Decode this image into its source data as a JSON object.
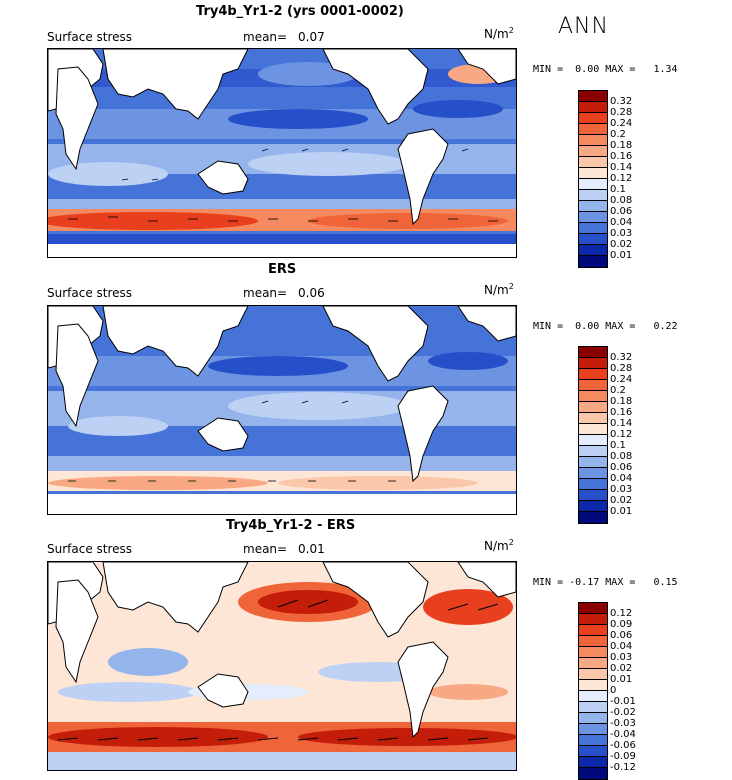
{
  "season": "ANN",
  "unit": "N/m",
  "unit_sup": "2",
  "panels": [
    {
      "title": "Try4b_Yr1-2 (yrs 0001-0002)",
      "field": "Surface stress",
      "mean_label": "mean=",
      "mean": "0.07",
      "minmax": {
        "min_label": "MIN =",
        "min": "0.00",
        "max_label": "MAX =",
        "max": "1.34"
      },
      "colorbar": {
        "labels": [
          "0.32",
          "0.28",
          "0.24",
          "0.2",
          "0.18",
          "0.16",
          "0.14",
          "0.12",
          "0.1",
          "0.08",
          "0.06",
          "0.04",
          "0.03",
          "0.02",
          "0.01"
        ],
        "colors": [
          "#8b0000",
          "#c41e0a",
          "#e8401f",
          "#f0643a",
          "#f5895f",
          "#f8a983",
          "#fac7ab",
          "#fde6d6",
          "#e3edfb",
          "#bcd1f4",
          "#95b4ec",
          "#6c94e2",
          "#4673d8",
          "#2650c9",
          "#0b28a8",
          "#000a7a"
        ]
      }
    },
    {
      "title": "ERS",
      "field": "Surface stress",
      "mean_label": "mean=",
      "mean": "0.06",
      "minmax": {
        "min_label": "MIN =",
        "min": "0.00",
        "max_label": "MAX =",
        "max": "0.22"
      },
      "colorbar": {
        "labels": [
          "0.32",
          "0.28",
          "0.24",
          "0.2",
          "0.18",
          "0.16",
          "0.14",
          "0.12",
          "0.1",
          "0.08",
          "0.06",
          "0.04",
          "0.03",
          "0.02",
          "0.01"
        ],
        "colors": [
          "#8b0000",
          "#c41e0a",
          "#e8401f",
          "#f0643a",
          "#f5895f",
          "#f8a983",
          "#fac7ab",
          "#fde6d6",
          "#e3edfb",
          "#bcd1f4",
          "#95b4ec",
          "#6c94e2",
          "#4673d8",
          "#2650c9",
          "#0b28a8",
          "#000a7a"
        ]
      }
    },
    {
      "title": "Try4b_Yr1-2 - ERS",
      "field": "Surface stress",
      "mean_label": "mean=",
      "mean": "0.01",
      "minmax": {
        "min_label": "MIN =",
        "min": "-0.17",
        "max_label": "MAX =",
        "max": "0.15"
      },
      "colorbar": {
        "labels": [
          "0.12",
          "0.09",
          "0.06",
          "0.04",
          "0.03",
          "0.02",
          "0.01",
          "0",
          "-0.01",
          "-0.02",
          "-0.03",
          "-0.04",
          "-0.06",
          "-0.09",
          "-0.12"
        ],
        "colors": [
          "#8b0000",
          "#c41e0a",
          "#e8401f",
          "#f0643a",
          "#f5895f",
          "#f8a983",
          "#fac7ab",
          "#fde6d6",
          "#e3edfb",
          "#bcd1f4",
          "#95b4ec",
          "#6c94e2",
          "#4673d8",
          "#2650c9",
          "#0b28a8",
          "#000a7a"
        ]
      }
    }
  ]
}
